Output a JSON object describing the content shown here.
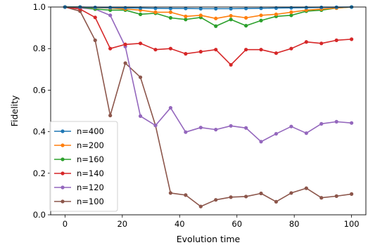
{
  "chart_data": {
    "type": "line",
    "title": "",
    "xlabel": "Evolution time",
    "ylabel": "Fidelity",
    "xlim": [
      -5,
      105
    ],
    "ylim": [
      0.0,
      1.0
    ],
    "xticks": [
      "0",
      "20",
      "40",
      "60",
      "80",
      "100"
    ],
    "yticks": [
      "0.0",
      "0.2",
      "0.4",
      "0.6",
      "0.8",
      "1.0"
    ],
    "grid": false,
    "legend_position": "lower-left",
    "x": [
      0,
      5.26,
      10.53,
      15.79,
      21.05,
      26.32,
      31.58,
      36.84,
      42.11,
      47.37,
      52.63,
      57.89,
      63.16,
      68.42,
      73.68,
      78.95,
      84.21,
      89.47,
      94.74,
      100
    ],
    "series": [
      {
        "name": "n=400",
        "color": "#1f77b4",
        "values": [
          1.0,
          1.0,
          0.998,
          0.997,
          0.996,
          0.995,
          0.994,
          0.993,
          0.993,
          0.992,
          0.992,
          0.992,
          0.993,
          0.994,
          0.995,
          0.996,
          0.997,
          0.998,
          0.999,
          1.0
        ]
      },
      {
        "name": "n=200",
        "color": "#ff7f0e",
        "values": [
          1.0,
          1.0,
          0.997,
          0.995,
          0.99,
          0.985,
          0.975,
          0.975,
          0.955,
          0.96,
          0.945,
          0.958,
          0.948,
          0.96,
          0.965,
          0.975,
          0.985,
          0.99,
          0.995,
          1.0
        ]
      },
      {
        "name": "n=160",
        "color": "#2ca02c",
        "values": [
          1.0,
          1.0,
          0.99,
          0.985,
          0.985,
          0.965,
          0.97,
          0.948,
          0.94,
          0.95,
          0.908,
          0.94,
          0.91,
          0.935,
          0.955,
          0.96,
          0.98,
          0.985,
          0.995,
          1.0
        ]
      },
      {
        "name": "n=140",
        "color": "#d62728",
        "values": [
          1.0,
          0.99,
          0.95,
          0.8,
          0.82,
          0.825,
          0.795,
          0.8,
          0.775,
          0.785,
          0.795,
          0.722,
          0.795,
          0.795,
          0.778,
          0.8,
          0.832,
          0.825,
          0.84,
          0.845
        ]
      },
      {
        "name": "n=120",
        "color": "#9467bd",
        "values": [
          1.0,
          0.995,
          0.99,
          0.96,
          0.81,
          0.475,
          0.43,
          0.515,
          0.398,
          0.42,
          0.41,
          0.428,
          0.418,
          0.352,
          0.39,
          0.425,
          0.393,
          0.438,
          0.448,
          0.442
        ]
      },
      {
        "name": "n=100",
        "color": "#8c564b",
        "values": [
          1.0,
          0.98,
          0.84,
          0.478,
          0.73,
          0.662,
          0.43,
          0.105,
          0.095,
          0.04,
          0.072,
          0.085,
          0.088,
          0.103,
          0.063,
          0.105,
          0.128,
          0.082,
          0.09,
          0.1
        ]
      }
    ]
  }
}
